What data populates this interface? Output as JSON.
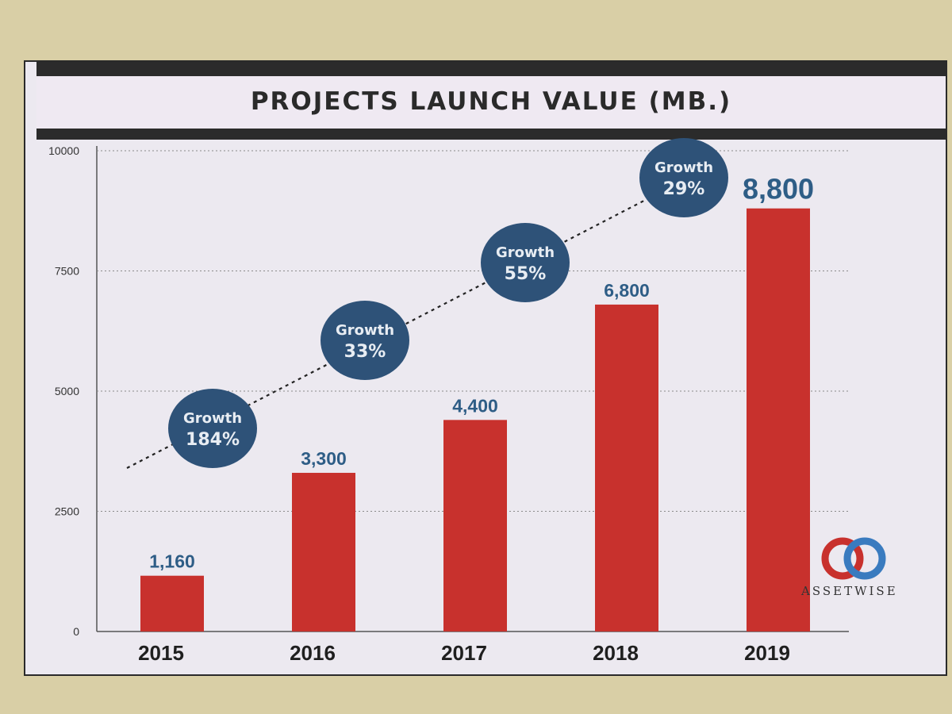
{
  "chart_data": {
    "type": "bar",
    "title": "PROJECTS LAUNCH VALUE (MB.)",
    "categories": [
      "2015",
      "2016",
      "2017",
      "2018",
      "2019"
    ],
    "values": [
      1160,
      3300,
      4400,
      6800,
      8800
    ],
    "value_labels": [
      "1,160",
      "3,300",
      "4,400",
      "6,800",
      "8,800"
    ],
    "ylim": [
      0,
      10000
    ],
    "yticks": [
      "0",
      "2500",
      "5000",
      "7500",
      "10000"
    ],
    "grid": true,
    "bar_color": "#c8312d",
    "label_color": "#2e5d86",
    "annotations": [
      {
        "line1": "Growth",
        "line2": "184%"
      },
      {
        "line1": "Growth",
        "line2": "33%"
      },
      {
        "line1": "Growth",
        "line2": "55%"
      },
      {
        "line1": "Growth",
        "line2": "29%"
      }
    ],
    "bubble_color": "#2e5278"
  },
  "brand": {
    "name": "ASSETWISE",
    "logo_colors": [
      "#c8312d",
      "#3a7bbf"
    ]
  }
}
